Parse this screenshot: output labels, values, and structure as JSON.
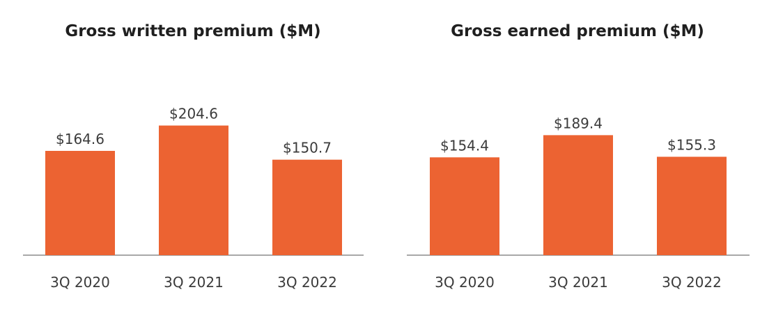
{
  "colors": {
    "bar": "#EC6332"
  },
  "chart_data": [
    {
      "type": "bar",
      "title": "Gross written premium ($M)",
      "categories": [
        "3Q 2020",
        "3Q 2021",
        "3Q 2022"
      ],
      "values": [
        164.6,
        204.6,
        150.7
      ],
      "data_labels": [
        "$164.6",
        "$204.6",
        "$150.7"
      ],
      "xlabel": "",
      "ylabel": "",
      "ylim": [
        0,
        260
      ],
      "grid": false,
      "legend": "none"
    },
    {
      "type": "bar",
      "title": "Gross earned premium ($M)",
      "categories": [
        "3Q 2020",
        "3Q 2021",
        "3Q 2022"
      ],
      "values": [
        154.4,
        189.4,
        155.3
      ],
      "data_labels": [
        "$154.4",
        "$189.4",
        "$155.3"
      ],
      "xlabel": "",
      "ylabel": "",
      "ylim": [
        0,
        200
      ],
      "grid": false,
      "legend": "none"
    }
  ]
}
